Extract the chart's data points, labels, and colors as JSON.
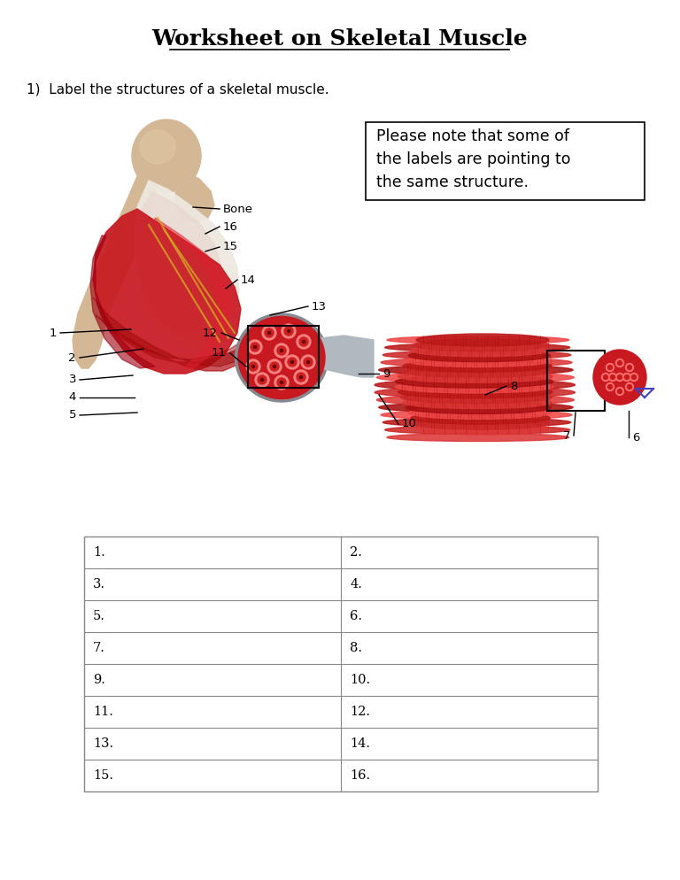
{
  "title": "Worksheet on Skeletal Muscle",
  "question": "1)  Label the structures of a skeletal muscle.",
  "note_line1": "Please note that some of",
  "note_line2": "the labels are pointing to",
  "note_line3": "the same structure.",
  "background_color": "#ffffff",
  "table_rows": [
    [
      "1.",
      "2."
    ],
    [
      "3.",
      "4."
    ],
    [
      "5.",
      "6."
    ],
    [
      "7.",
      "8."
    ],
    [
      "9.",
      "10."
    ],
    [
      "11.",
      "12."
    ],
    [
      "13.",
      "14."
    ],
    [
      "15.",
      "16."
    ]
  ],
  "fig_width": 7.68,
  "fig_height": 9.94
}
